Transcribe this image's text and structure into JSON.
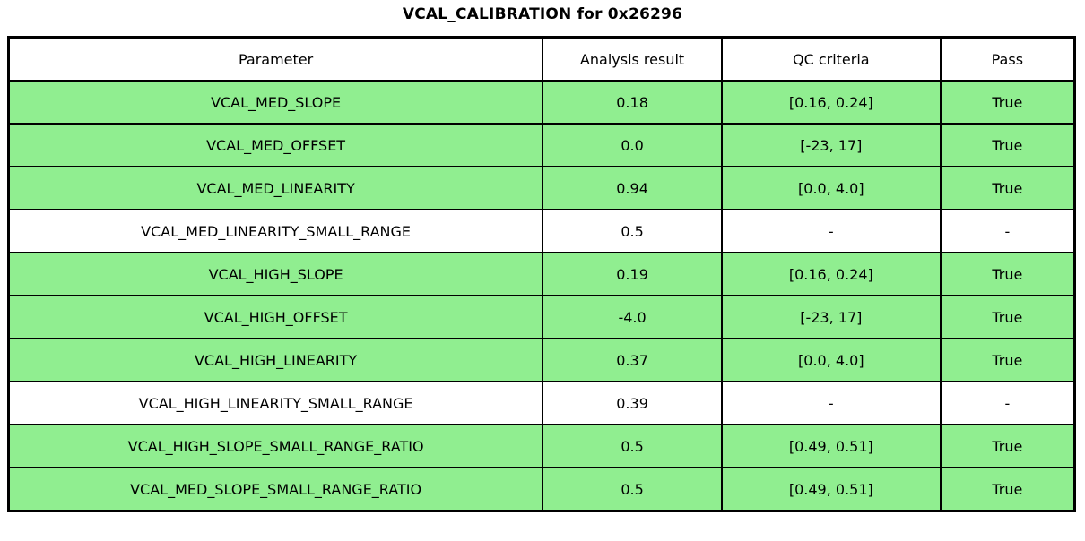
{
  "title": "VCAL_CALIBRATION for 0x26296",
  "colors": {
    "pass_row_bg": "#90ee90",
    "plain_row_bg": "#ffffff",
    "grid": "#000000",
    "text": "#000000"
  },
  "chart_data": {
    "type": "table",
    "title": "VCAL_CALIBRATION for 0x26296",
    "columns": [
      "Parameter",
      "Analysis result",
      "QC criteria",
      "Pass"
    ],
    "rows": [
      {
        "parameter": "VCAL_MED_SLOPE",
        "analysis_result": "0.18",
        "qc_criteria": "[0.16, 0.24]",
        "pass": "True",
        "highlighted": true
      },
      {
        "parameter": "VCAL_MED_OFFSET",
        "analysis_result": "0.0",
        "qc_criteria": "[-23, 17]",
        "pass": "True",
        "highlighted": true
      },
      {
        "parameter": "VCAL_MED_LINEARITY",
        "analysis_result": "0.94",
        "qc_criteria": "[0.0, 4.0]",
        "pass": "True",
        "highlighted": true
      },
      {
        "parameter": "VCAL_MED_LINEARITY_SMALL_RANGE",
        "analysis_result": "0.5",
        "qc_criteria": "-",
        "pass": "-",
        "highlighted": false
      },
      {
        "parameter": "VCAL_HIGH_SLOPE",
        "analysis_result": "0.19",
        "qc_criteria": "[0.16, 0.24]",
        "pass": "True",
        "highlighted": true
      },
      {
        "parameter": "VCAL_HIGH_OFFSET",
        "analysis_result": "-4.0",
        "qc_criteria": "[-23, 17]",
        "pass": "True",
        "highlighted": true
      },
      {
        "parameter": "VCAL_HIGH_LINEARITY",
        "analysis_result": "0.37",
        "qc_criteria": "[0.0, 4.0]",
        "pass": "True",
        "highlighted": true
      },
      {
        "parameter": "VCAL_HIGH_LINEARITY_SMALL_RANGE",
        "analysis_result": "0.39",
        "qc_criteria": "-",
        "pass": "-",
        "highlighted": false
      },
      {
        "parameter": "VCAL_HIGH_SLOPE_SMALL_RANGE_RATIO",
        "analysis_result": "0.5",
        "qc_criteria": "[0.49, 0.51]",
        "pass": "True",
        "highlighted": true
      },
      {
        "parameter": "VCAL_MED_SLOPE_SMALL_RANGE_RATIO",
        "analysis_result": "0.5",
        "qc_criteria": "[0.49, 0.51]",
        "pass": "True",
        "highlighted": true
      }
    ]
  }
}
